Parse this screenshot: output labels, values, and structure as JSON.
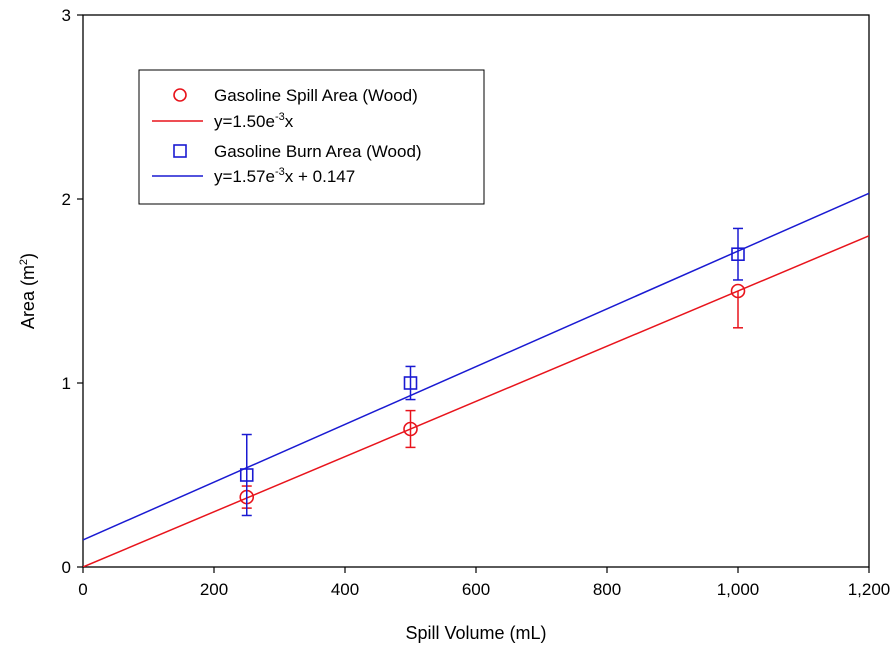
{
  "chart_data": {
    "type": "scatter",
    "title": "",
    "xlabel": "Spill Volume (mL)",
    "ylabel_main": "Area (m",
    "ylabel_sup": "2",
    "ylabel_close": ")",
    "xlim": [
      0,
      1200
    ],
    "ylim": [
      0,
      3
    ],
    "xticks": [
      0,
      200,
      400,
      600,
      800,
      1000,
      1200
    ],
    "xtick_labels": [
      "0",
      "200",
      "400",
      "600",
      "800",
      "1,000",
      "1,200"
    ],
    "yticks": [
      0,
      1,
      2,
      3
    ],
    "ytick_labels": [
      "0",
      "1",
      "2",
      "3"
    ],
    "grid": false,
    "legend_position": "top-left",
    "series": [
      {
        "name": "Gasoline Spill Area (Wood)",
        "marker": "circle",
        "color": "#e8141c",
        "points": [
          {
            "x": 250,
            "y": 0.38,
            "err_low": 0.06,
            "err_high": 0.06
          },
          {
            "x": 500,
            "y": 0.75,
            "err_low": 0.1,
            "err_high": 0.1
          },
          {
            "x": 1000,
            "y": 1.5,
            "err_low": 0.2,
            "err_high": 0.0
          }
        ],
        "fit": {
          "slope": 0.0015,
          "intercept": 0.0
        },
        "fit_label_main": "y=1.50e",
        "fit_label_sup": "-3",
        "fit_label_rest": "x"
      },
      {
        "name": "Gasoline Burn Area (Wood)",
        "marker": "square",
        "color": "#1a1ad2",
        "points": [
          {
            "x": 250,
            "y": 0.5,
            "err_low": 0.22,
            "err_high": 0.22
          },
          {
            "x": 500,
            "y": 1.0,
            "err_low": 0.09,
            "err_high": 0.09
          },
          {
            "x": 1000,
            "y": 1.7,
            "err_low": 0.14,
            "err_high": 0.14
          }
        ],
        "fit": {
          "slope": 0.00157,
          "intercept": 0.147
        },
        "fit_label_main": "y=1.57e",
        "fit_label_sup": "-3",
        "fit_label_rest": "x + 0.147"
      }
    ]
  }
}
